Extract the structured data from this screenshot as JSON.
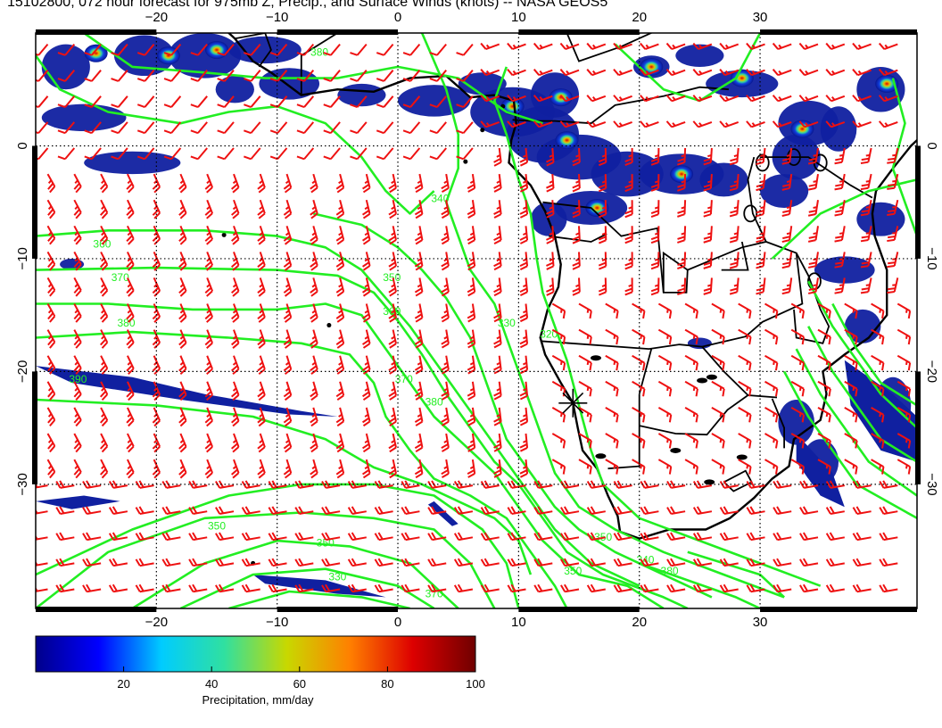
{
  "title": "15102800, 072 hour forecast for 975mb Z, Precip., and Surface Winds (knots) -- NASA GEOS5",
  "map": {
    "lon_range": [
      -30,
      43
    ],
    "lat_range": [
      -41,
      10
    ],
    "lon_ticks": [
      {
        "value": -20,
        "label": "−20"
      },
      {
        "value": -10,
        "label": "−10"
      },
      {
        "value": 0,
        "label": "0"
      },
      {
        "value": 10,
        "label": "10"
      },
      {
        "value": 20,
        "label": "20"
      },
      {
        "value": 30,
        "label": "30"
      }
    ],
    "lat_ticks": [
      {
        "value": 0,
        "label": "0"
      },
      {
        "value": -10,
        "label": "−10"
      },
      {
        "value": -20,
        "label": "−20"
      },
      {
        "value": -30,
        "label": "−30"
      }
    ],
    "grid": "dotted",
    "marker": {
      "symbol": "star",
      "lon": 14.5,
      "lat": -22.8
    },
    "contour_labels": [
      {
        "text": "380",
        "lon": -22.5,
        "lat": -16
      },
      {
        "text": "370",
        "lon": -23,
        "lat": -12
      },
      {
        "text": "360",
        "lon": -24.5,
        "lat": -9
      },
      {
        "text": "390",
        "lon": -26.5,
        "lat": -21
      },
      {
        "text": "350",
        "lon": -0.5,
        "lat": -12
      },
      {
        "text": "360",
        "lon": -0.5,
        "lat": -15
      },
      {
        "text": "340",
        "lon": 3.5,
        "lat": -5
      },
      {
        "text": "370",
        "lon": 0.5,
        "lat": -21
      },
      {
        "text": "380",
        "lon": 3,
        "lat": -23
      },
      {
        "text": "330",
        "lon": 9,
        "lat": -16
      },
      {
        "text": "320",
        "lon": 12.5,
        "lat": -17
      },
      {
        "text": "380",
        "lon": -6.5,
        "lat": 8
      },
      {
        "text": "350",
        "lon": -15,
        "lat": -34
      },
      {
        "text": "350",
        "lon": -6,
        "lat": -35.5
      },
      {
        "text": "330",
        "lon": -5,
        "lat": -38.5
      },
      {
        "text": "350",
        "lon": 17,
        "lat": -35
      },
      {
        "text": "340",
        "lon": 20.5,
        "lat": -37
      },
      {
        "text": "350",
        "lon": 14.5,
        "lat": -38
      },
      {
        "text": "370",
        "lon": 3,
        "lat": -40
      },
      {
        "text": "380",
        "lon": 22.5,
        "lat": -38
      }
    ],
    "colors": {
      "background": "#ffffff",
      "contour": "#22ee22",
      "wind_barb": "#ee1111",
      "coast": "#000000",
      "precip_low": "#1020a0"
    }
  },
  "colorbar": {
    "label": "Precipitation, mm/day",
    "ticks": [
      {
        "value": 20,
        "label": "20"
      },
      {
        "value": 40,
        "label": "40"
      },
      {
        "value": 60,
        "label": "60"
      },
      {
        "value": 80,
        "label": "80"
      },
      {
        "value": 100,
        "label": "100"
      }
    ],
    "range": [
      0,
      100
    ],
    "colormap": [
      "#00008a",
      "#0000ff",
      "#00ccff",
      "#30e0a0",
      "#c8d800",
      "#ff8000",
      "#dd0000",
      "#700000"
    ]
  }
}
